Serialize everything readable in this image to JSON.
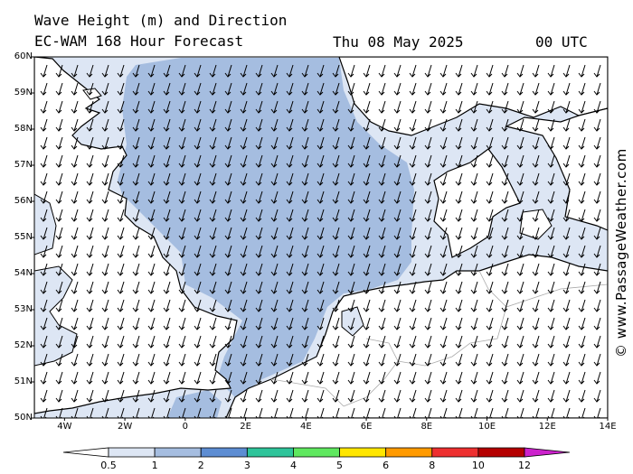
{
  "header": {
    "title": "Wave Height (m) and Direction",
    "model": "EC-WAM 168 Hour Forecast",
    "date": "Thu 08 May 2025",
    "time": "00 UTC"
  },
  "watermark": "© www.PassageWeather.com",
  "map": {
    "lon_range": [
      -5,
      14
    ],
    "lat_range": [
      50,
      60
    ],
    "lat_labels": [
      "60N",
      "59N",
      "58N",
      "57N",
      "56N",
      "55N",
      "54N",
      "53N",
      "52N",
      "51N",
      "50N"
    ],
    "lon_labels": [
      "4W",
      "2W",
      "0",
      "2E",
      "4E",
      "6E",
      "8E",
      "10E",
      "12E",
      "14E"
    ],
    "arrow_direction": "south-southwest",
    "colors": {
      "water_low": "#dde6f4",
      "water_mid": "#a5bde0",
      "land": "#ffffff",
      "coastline": "#000000",
      "borders": "#aaaaaa"
    }
  },
  "colorbar": {
    "labels": [
      "0.5",
      "1",
      "2",
      "3",
      "4",
      "5",
      "6",
      "8",
      "10",
      "12"
    ],
    "colors": [
      "#dde6f4",
      "#a5bde0",
      "#5d8dd3",
      "#2ec49a",
      "#5fe85f",
      "#ffe600",
      "#ff9a00",
      "#ee3030",
      "#b50000"
    ],
    "under_color": "#ffffff",
    "over_color": "#cc22cc"
  }
}
